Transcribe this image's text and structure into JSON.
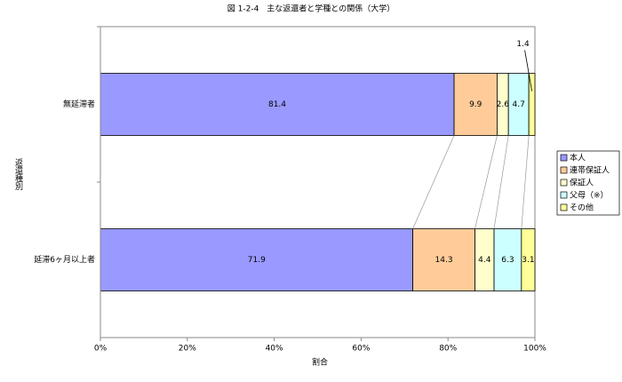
{
  "chart_data": {
    "type": "stacked-bar-horizontal",
    "title": "図 1-2-4　主な返還者と学種との関係（大学）",
    "x_label": "割合",
    "y_label": "返還種別",
    "categories": [
      "無延滞者",
      "延滞6ヶ月以上者"
    ],
    "series": [
      {
        "name": "本人",
        "color": "#9999ff",
        "values": [
          81.4,
          71.9
        ]
      },
      {
        "name": "連帯保証人",
        "color": "#ffcc99",
        "values": [
          9.9,
          14.3
        ]
      },
      {
        "name": "保証人",
        "color": "#ffffcc",
        "values": [
          2.6,
          4.4
        ]
      },
      {
        "name": "父母（※）",
        "color": "#ccffff",
        "values": [
          4.7,
          6.3
        ]
      },
      {
        "name": "その他",
        "color": "#ffff99",
        "values": [
          1.4,
          3.1
        ]
      }
    ],
    "xlim": [
      0,
      100
    ],
    "xticks": [
      {
        "value": 0,
        "label": "0%"
      },
      {
        "value": 20,
        "label": "20%"
      },
      {
        "value": 40,
        "label": "40%"
      },
      {
        "value": 60,
        "label": "60%"
      },
      {
        "value": 80,
        "label": "80%"
      },
      {
        "value": 100,
        "label": "100%"
      }
    ],
    "legend": "right"
  }
}
